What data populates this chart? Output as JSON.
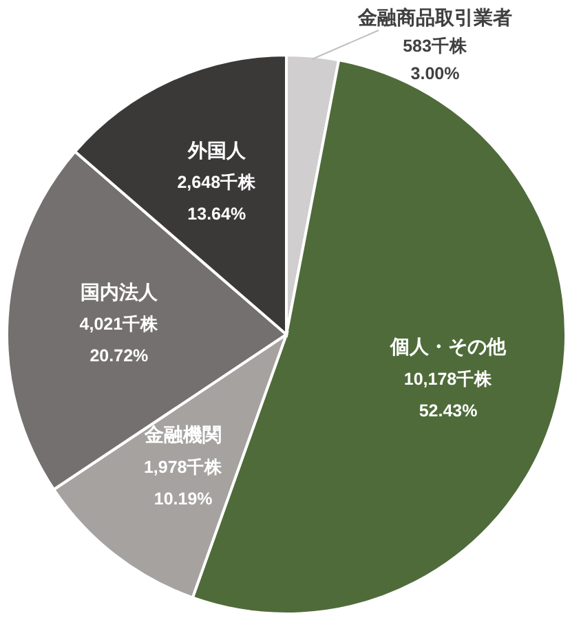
{
  "chart_data": {
    "type": "pie",
    "categories": [
      "金融商品取引業者",
      "個人・その他",
      "金融機関",
      "国内法人",
      "外国人"
    ],
    "values": [
      583,
      10178,
      1978,
      4021,
      2648
    ],
    "colors": [
      "#d0cece",
      "#4f6b3a",
      "#a5a2a0",
      "#747070",
      "#3b3838"
    ],
    "value_labels": [
      "583千株",
      "10,178千株",
      "1,978千株",
      "4,021千株",
      "2,648千株"
    ],
    "annotations": [
      {
        "text": "3.00%",
        "x": "金融商品取引業者"
      },
      {
        "text": "52.43%",
        "x": "個人・その他"
      },
      {
        "text": "10.19%",
        "x": "金融機関"
      },
      {
        "text": "20.72%",
        "x": "国内法人"
      },
      {
        "text": "13.64%",
        "x": "外国人"
      }
    ],
    "data_labels": false
  }
}
